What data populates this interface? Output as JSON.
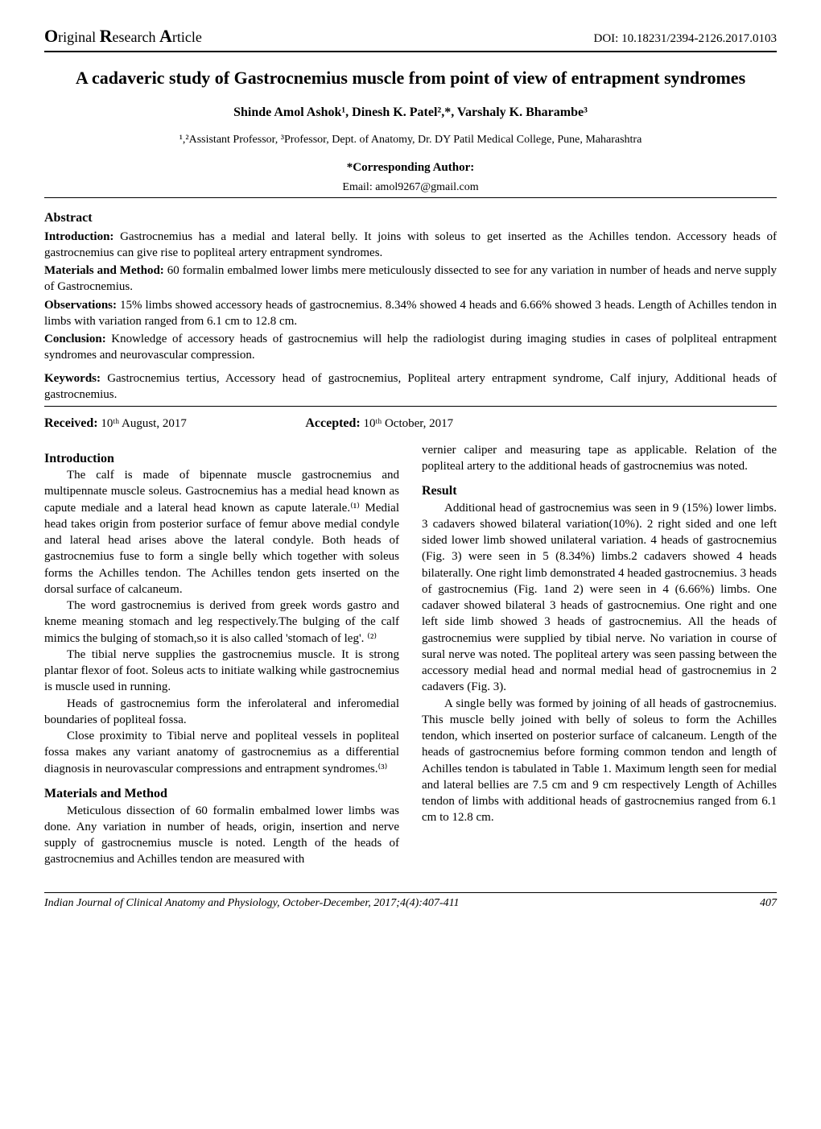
{
  "header": {
    "journal_label_parts": [
      "O",
      "riginal ",
      "R",
      "esearch ",
      "A",
      "rticle"
    ],
    "doi": "DOI: 10.18231/2394-2126.2017.0103"
  },
  "title": "A cadaveric study of Gastrocnemius muscle from point of view of entrapment syndromes",
  "authors": "Shinde Amol Ashok¹, Dinesh K. Patel²,*, Varshaly K. Bharambe³",
  "affiliation": "¹,²Assistant Professor, ³Professor, Dept. of Anatomy, Dr. DY Patil Medical College, Pune, Maharashtra",
  "corresponding_label": "*Corresponding Author:",
  "corresponding_email": "Email: amol9267@gmail.com",
  "abstract_head": "Abstract",
  "abstract": {
    "intro_label": "Introduction:",
    "intro_text": " Gastrocnemius has a medial and lateral belly. It joins with soleus to get inserted as the Achilles tendon. Accessory heads of gastrocnemius can give rise to popliteal artery entrapment syndromes.",
    "mm_label": "Materials and Method:",
    "mm_text": " 60 formalin embalmed lower limbs mere meticulously dissected to see for any variation in number of heads and nerve supply of Gastrocnemius.",
    "obs_label": "Observations:",
    "obs_text": " 15% limbs showed accessory heads of gastrocnemius. 8.34% showed 4 heads and 6.66% showed 3 heads. Length of Achilles tendon in limbs with variation ranged from 6.1 cm to 12.8 cm.",
    "conc_label": "Conclusion:",
    "conc_text": " Knowledge of accessory heads of gastrocnemius will help the radiologist during imaging studies in cases of polpliteal entrapment syndromes and neurovascular compression."
  },
  "keywords_label": "Keywords:",
  "keywords_text": " Gastrocnemius tertius, Accessory head of gastrocnemius, Popliteal artery entrapment syndrome, Calf injury, Additional heads of gastrocnemius.",
  "received_label": "Received:",
  "received_val": " 10ᵗʰ August, 2017",
  "accepted_label": "Accepted:",
  "accepted_val": " 10ᵗʰ October, 2017",
  "body": {
    "intro_head": "Introduction",
    "intro_p1": "The calf is made of bipennate muscle gastrocnemius and multipennate muscle soleus. Gastrocnemius has a medial head known as capute mediale and a lateral head known as capute laterale.⁽¹⁾ Medial head takes origin from posterior surface of femur above medial condyle and lateral head arises above the lateral condyle. Both heads of gastrocnemius fuse to form a single belly which together with soleus forms the Achilles tendon. The Achilles tendon gets inserted on the dorsal surface of calcaneum.",
    "intro_p2": "The word gastrocnemius is derived from greek words gastro and kneme meaning stomach and leg respectively.The bulging of the calf mimics the bulging of stomach,so it is also called 'stomach of leg'. ⁽²⁾",
    "intro_p3": "The tibial nerve supplies the gastrocnemius muscle. It is strong plantar flexor of foot. Soleus acts to initiate walking while gastrocnemius is muscle used in running.",
    "intro_p4": "Heads of gastrocnemius form the inferolateral and inferomedial boundaries of popliteal fossa.",
    "intro_p5": "Close proximity to Tibial nerve and popliteal vessels in popliteal fossa makes any variant anatomy of gastrocnemius as a differential diagnosis in neurovascular compressions and entrapment syndromes.⁽³⁾",
    "mm_head": "Materials and Method",
    "mm_p1": "Meticulous dissection of 60 formalin embalmed lower limbs was done. Any variation in number of heads, origin, insertion and nerve supply of gastrocnemius muscle is noted. Length of the heads of gastrocnemius and Achilles tendon are measured with",
    "right_top": "vernier caliper and measuring tape as applicable. Relation of the popliteal artery to the additional heads of gastrocnemius was noted.",
    "result_head": "Result",
    "result_p1": "Additional head of gastrocnemius was seen in 9 (15%) lower limbs. 3 cadavers showed bilateral variation(10%). 2 right sided and one left sided lower limb showed unilateral variation. 4 heads of gastrocnemius (Fig. 3) were seen in 5 (8.34%) limbs.2 cadavers showed 4 heads bilaterally. One right limb demonstrated 4 headed gastrocnemius. 3 heads of gastrocnemius (Fig. 1and 2) were seen in 4 (6.66%) limbs. One cadaver showed bilateral 3 heads of gastrocnemius. One right and one left side limb showed 3 heads of gastrocnemius. All the heads of gastrocnemius were supplied by tibial nerve. No variation in course of sural nerve was noted. The popliteal artery was seen passing between the accessory medial head and normal medial head of gastrocnemius in 2 cadavers (Fig. 3).",
    "result_p2": "A single belly was formed by joining of all heads of gastrocnemius. This muscle belly joined with belly of soleus to form the Achilles tendon, which inserted on posterior surface of calcaneum. Length of the heads of gastrocnemius before forming common tendon and length of Achilles tendon is tabulated in Table 1. Maximum length seen for medial and lateral bellies are 7.5 cm and 9 cm respectively Length of Achilles tendon of limbs with additional heads of gastrocnemius ranged from 6.1 cm to 12.8 cm."
  },
  "footer": {
    "journal": "Indian Journal of Clinical Anatomy and Physiology, October-December, 2017;4(4):407-411",
    "page": "407"
  }
}
